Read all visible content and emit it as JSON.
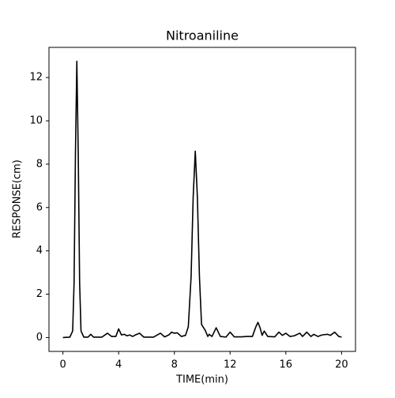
{
  "chart_data": {
    "type": "line",
    "title": "Nitroaniline",
    "xlabel": "TIME(min)",
    "ylabel": "RESPONSE(cm)",
    "x": [
      0,
      0.5,
      0.7,
      0.8,
      0.9,
      1.0,
      1.1,
      1.2,
      1.3,
      1.5,
      1.8,
      2.0,
      2.2,
      2.8,
      3.2,
      3.5,
      3.8,
      4.0,
      4.2,
      4.4,
      4.6,
      4.8,
      5.0,
      5.2,
      5.5,
      5.8,
      6.5,
      7.0,
      7.3,
      7.6,
      7.8,
      8.0,
      8.2,
      8.5,
      8.8,
      9.0,
      9.2,
      9.35,
      9.5,
      9.65,
      9.8,
      9.95,
      10.2,
      10.4,
      10.5,
      10.7,
      11.0,
      11.3,
      11.7,
      12.0,
      12.3,
      12.8,
      13.2,
      13.6,
      13.85,
      14.0,
      14.15,
      14.3,
      14.45,
      14.7,
      15.2,
      15.5,
      15.75,
      16.0,
      16.3,
      16.6,
      17.0,
      17.2,
      17.5,
      17.8,
      18.0,
      18.3,
      18.6,
      19.0,
      19.2,
      19.5,
      19.8,
      20.0
    ],
    "series": [
      {
        "name": "Nitroaniline",
        "color": "#000000",
        "values": [
          0,
          0.02,
          0.3,
          2.5,
          8.5,
          12.75,
          8.5,
          2.5,
          0.3,
          0.02,
          0.02,
          0.15,
          0.02,
          0.02,
          0.2,
          0.05,
          0.05,
          0.4,
          0.12,
          0.15,
          0.08,
          0.12,
          0.05,
          0.12,
          0.2,
          0.02,
          0.02,
          0.2,
          0.03,
          0.12,
          0.25,
          0.2,
          0.22,
          0.05,
          0.1,
          0.5,
          2.8,
          6.5,
          8.6,
          6.5,
          2.8,
          0.6,
          0.35,
          0.05,
          0.15,
          0.05,
          0.45,
          0.05,
          0.02,
          0.25,
          0.03,
          0.03,
          0.05,
          0.05,
          0.5,
          0.7,
          0.45,
          0.1,
          0.3,
          0.05,
          0.03,
          0.25,
          0.1,
          0.2,
          0.05,
          0.08,
          0.2,
          0.05,
          0.25,
          0.05,
          0.15,
          0.05,
          0.12,
          0.15,
          0.1,
          0.25,
          0.05,
          0.02
        ]
      }
    ],
    "xlim": [
      -1,
      21
    ],
    "ylim": [
      -0.64,
      13.39
    ],
    "xticks": [
      0,
      4,
      8,
      12,
      16,
      20
    ],
    "yticks": [
      0,
      2,
      4,
      6,
      8,
      10,
      12
    ]
  }
}
